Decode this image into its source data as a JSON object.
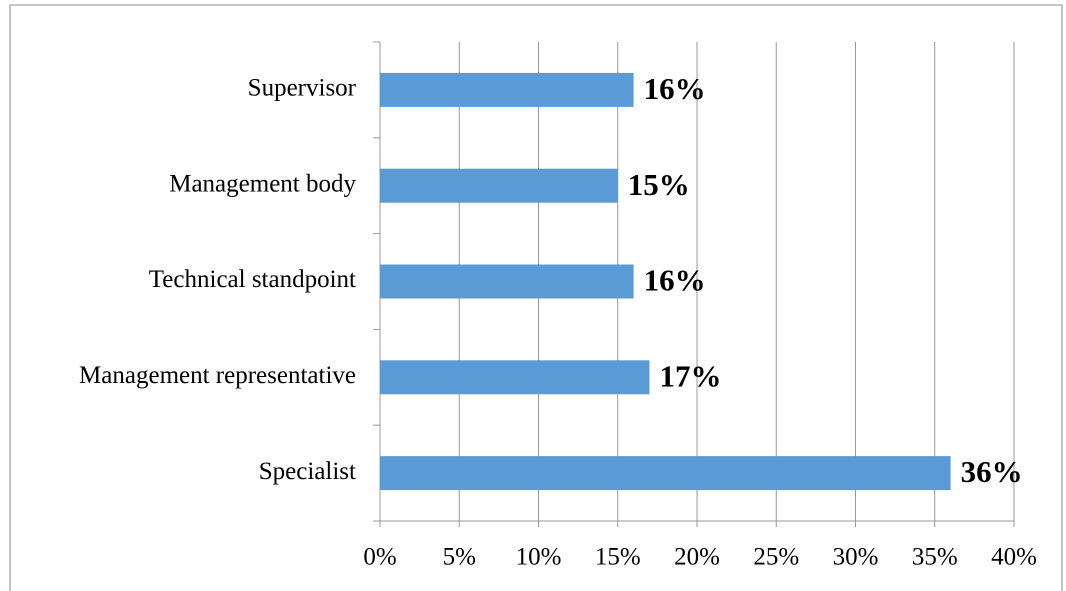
{
  "chart_data": {
    "type": "bar",
    "orientation": "horizontal",
    "categories": [
      "Supervisor",
      "Management body",
      "Technical standpoint",
      "Management representative",
      "Specialist"
    ],
    "values": [
      16,
      15,
      16,
      17,
      36
    ],
    "value_labels": [
      "16%",
      "15%",
      "16%",
      "17%",
      "36%"
    ],
    "color": "#5b9bd5",
    "xlim": [
      0,
      40
    ],
    "xticks": [
      {
        "value": 0,
        "label": "0%"
      },
      {
        "value": 5,
        "label": "5%"
      },
      {
        "value": 10,
        "label": "10%"
      },
      {
        "value": 15,
        "label": "15%"
      },
      {
        "value": 20,
        "label": "20%"
      },
      {
        "value": 25,
        "label": "25%"
      },
      {
        "value": 30,
        "label": "30%"
      },
      {
        "value": 35,
        "label": "35%"
      },
      {
        "value": 40,
        "label": "40%"
      }
    ],
    "grid": true
  }
}
